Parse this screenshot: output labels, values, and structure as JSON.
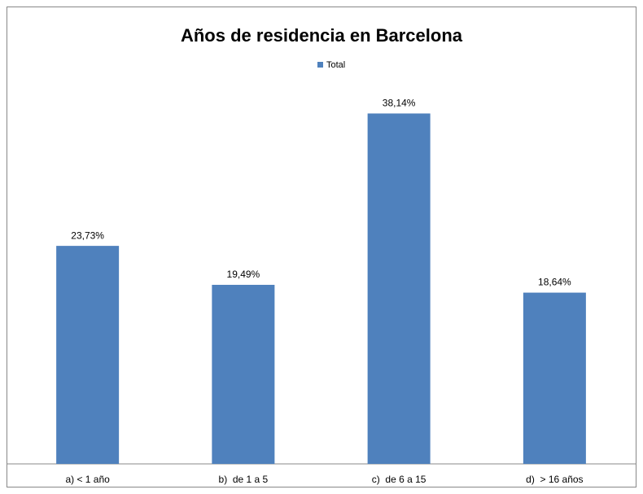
{
  "chart_data": {
    "type": "bar",
    "title": "Años de residencia en Barcelona",
    "categories": [
      "a) < 1 año",
      "b)  de 1 a 5",
      "c)  de 6 a 15",
      "d)  > 16 años"
    ],
    "series": [
      {
        "name": "Total",
        "color": "#4f81bd",
        "values": [
          23.73,
          19.49,
          38.14,
          18.64
        ],
        "value_labels": [
          "23,73%",
          "19,49%",
          "38,14%",
          "18,64%"
        ]
      }
    ],
    "ylim": [
      0,
      45
    ],
    "legend": "top"
  }
}
